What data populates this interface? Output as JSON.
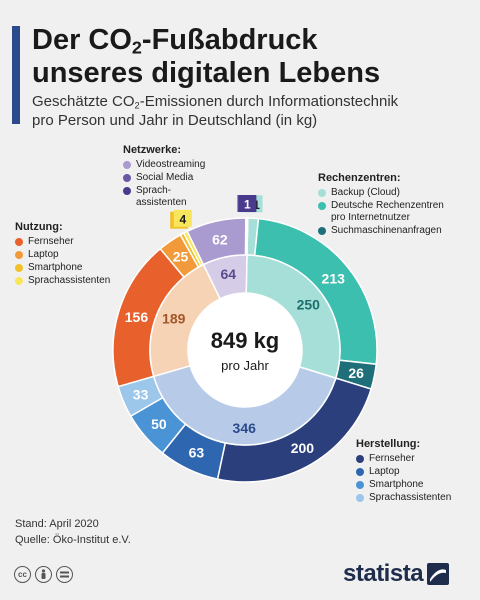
{
  "header": {
    "title_line1": "Der CO₂-Fußabdruck",
    "title_line2": "unseres digitalen Lebens",
    "subtitle_line1": "Geschätzte CO₂-Emissionen durch Informationstechnik",
    "subtitle_line2": "pro Person und Jahr in Deutschland (in kg)"
  },
  "center": {
    "value": "849 kg",
    "unit": "pro Jahr"
  },
  "legends": {
    "netzwerke": {
      "title": "Netzwerke:",
      "items": [
        "Videostreaming",
        "Social Media",
        "Sprach-",
        "assistenten"
      ]
    },
    "rechenzentren": {
      "title": "Rechenzentren:",
      "items": [
        "Backup (Cloud)",
        "Deutsche Rechenzentren",
        "pro Internetnutzer",
        "Suchmaschinenanfragen"
      ]
    },
    "nutzung": {
      "title": "Nutzung:",
      "items": [
        "Fernseher",
        "Laptop",
        "Smartphone",
        "Sprachassistenten"
      ]
    },
    "herstellung": {
      "title": "Herstellung:",
      "items": [
        "Fernseher",
        "Laptop",
        "Smartphone",
        "Sprachassistenten"
      ]
    }
  },
  "footer": {
    "stand": "Stand: April 2020",
    "quelle": "Quelle: Öko-Institut e.V."
  },
  "brand": {
    "name": "statista"
  },
  "chart_data": {
    "type": "donut",
    "total": 849,
    "inner": [
      {
        "name": "Rechenzentren",
        "value": 250,
        "color": "#a6dfd8",
        "text_color": "#1b6f6c"
      },
      {
        "name": "Herstellung",
        "value": 346,
        "color": "#b7cbe9",
        "text_color": "#2b4a8c"
      },
      {
        "name": "Nutzung",
        "value": 189,
        "color": "#f5d3b4",
        "text_color": "#a3552a"
      },
      {
        "name": "Netzwerke",
        "value": 64,
        "color": "#d5cde7",
        "text_color": "#5b4a8c"
      }
    ],
    "outer": [
      {
        "group": "Rechenzentren",
        "name": "Backup (Cloud)",
        "value": 11,
        "color": "#a6dfd8",
        "label": "11"
      },
      {
        "group": "Rechenzentren",
        "name": "Deutsche Rechenzentren pro Internetnutzer",
        "value": 213,
        "color": "#3cbfae",
        "label": "213"
      },
      {
        "group": "Rechenzentren",
        "name": "Suchmaschinenanfragen",
        "value": 26,
        "color": "#1f6f7a",
        "label": "26"
      },
      {
        "group": "Herstellung",
        "name": "Fernseher",
        "value": 200,
        "color": "#2b3f7c",
        "label": "200"
      },
      {
        "group": "Herstellung",
        "name": "Laptop",
        "value": 63,
        "color": "#2f66b0",
        "label": "63"
      },
      {
        "group": "Herstellung",
        "name": "Smartphone",
        "value": 50,
        "color": "#4a93d4",
        "label": "50"
      },
      {
        "group": "Herstellung",
        "name": "Sprachassistenten",
        "value": 33,
        "color": "#9cc6ea",
        "label": "33"
      },
      {
        "group": "Nutzung",
        "name": "Fernseher",
        "value": 156,
        "color": "#e8612c",
        "label": "156"
      },
      {
        "group": "Nutzung",
        "name": "Laptop",
        "value": 25,
        "color": "#f29a3a",
        "label": "25"
      },
      {
        "group": "Nutzung",
        "name": "Smartphone",
        "value": 4,
        "color": "#f2c02c",
        "label": "4"
      },
      {
        "group": "Nutzung",
        "name": "Sprachassistenten",
        "value": 4,
        "color": "#f7e55b",
        "label": "4"
      },
      {
        "group": "Netzwerke",
        "name": "Videostreaming",
        "value": 62,
        "color": "#a99ad0",
        "label": "62"
      },
      {
        "group": "Netzwerke",
        "name": "Social Media",
        "value": 1,
        "color": "#6a57a8",
        "label": "1"
      },
      {
        "group": "Netzwerke",
        "name": "Sprachassistenten",
        "value": 1,
        "color": "#4a3a8c",
        "label": "1"
      }
    ],
    "legend_colors": {
      "netzwerke": [
        "#a99ad0",
        "#6a57a8",
        "#4a3a8c"
      ],
      "rechenzentren": [
        "#a6dfd8",
        "#3cbfae",
        "#1f6f7a"
      ],
      "nutzung": [
        "#e8612c",
        "#f29a3a",
        "#f2c02c",
        "#f7e55b"
      ],
      "herstellung": [
        "#2b3f7c",
        "#2f66b0",
        "#4a93d4",
        "#9cc6ea"
      ]
    }
  }
}
